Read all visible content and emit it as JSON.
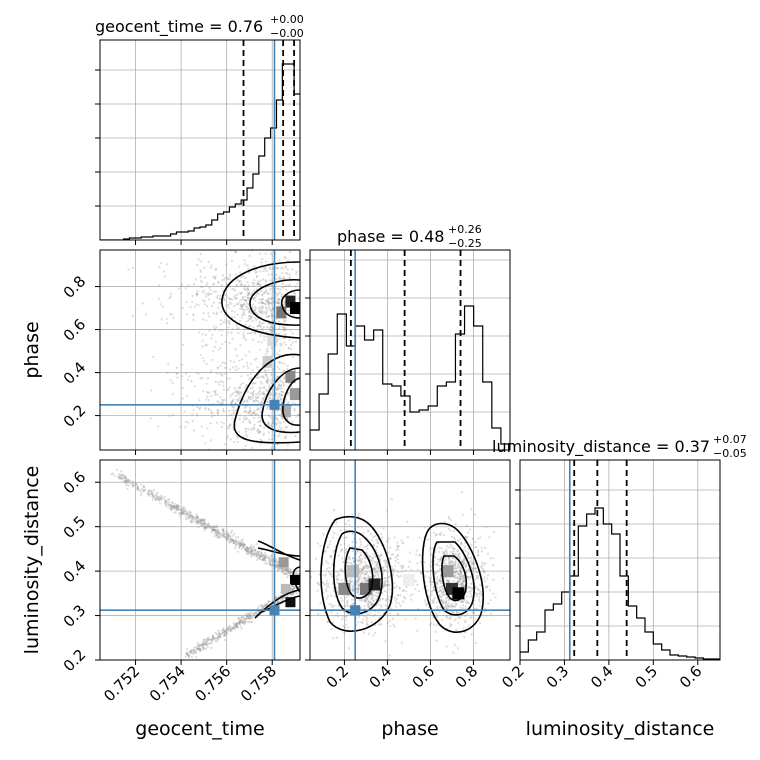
{
  "chart_data": {
    "type": "corner",
    "parameters": [
      "geocent_time",
      "phase",
      "luminosity_distance"
    ],
    "titles": [
      {
        "name": "geocent_time",
        "value": "0.76",
        "plus": "+0.00",
        "minus": "−0.00"
      },
      {
        "name": "phase",
        "value": "0.48",
        "plus": "+0.26",
        "minus": "−0.25"
      },
      {
        "name": "luminosity_distance",
        "value": "0.37",
        "plus": "+0.07",
        "minus": "−0.05"
      }
    ],
    "axis_labels": {
      "x": [
        "geocent_time",
        "phase",
        "luminosity_distance"
      ],
      "y": [
        "phase",
        "luminosity_distance"
      ]
    },
    "ranges": {
      "geocent_time": [
        0.75044,
        0.75922
      ],
      "phase": [
        0.04,
        0.97
      ],
      "luminosity_distance": [
        0.2,
        0.65
      ]
    },
    "ticks": {
      "geocent_time": [
        "0.752",
        "0.754",
        "0.756",
        "0.758"
      ],
      "phase_x": [
        "0.2",
        "0.4",
        "0.6",
        "0.8"
      ],
      "phase_y": [
        "0.2",
        "0.4",
        "0.6",
        "0.8"
      ],
      "luminosity_distance_x": [
        "0.2",
        "0.3",
        "0.4",
        "0.5",
        "0.6"
      ],
      "luminosity_distance_y": [
        "0.2",
        "0.3",
        "0.4",
        "0.5",
        "0.6"
      ]
    },
    "truths": {
      "geocent_time": 0.7581,
      "phase": 0.25,
      "luminosity_distance": 0.312
    },
    "quantiles": {
      "geocent_time": [
        0.75674,
        0.75848,
        0.75896
      ],
      "phase": [
        0.23,
        0.48,
        0.74
      ],
      "luminosity_distance": [
        0.322,
        0.374,
        0.44
      ]
    },
    "histograms": {
      "geocent_time": [
        0,
        0,
        0,
        0,
        0.005,
        0.01,
        0.01,
        0.015,
        0.015,
        0.02,
        0.02,
        0.02,
        0.03,
        0.04,
        0.04,
        0.045,
        0.06,
        0.065,
        0.075,
        0.1,
        0.13,
        0.14,
        0.165,
        0.18,
        0.2,
        0.26,
        0.33,
        0.42,
        0.51,
        0.56,
        0.7,
        0.88,
        0.88,
        0.73
      ],
      "phase": [
        0.1,
        0.28,
        0.48,
        0.68,
        0.52,
        0.62,
        0.55,
        0.6,
        0.33,
        0.32,
        0.27,
        0.19,
        0.2,
        0.22,
        0.32,
        0.34,
        0.58,
        0.72,
        0.62,
        0.34,
        0.11,
        0.03
      ],
      "luminosity_distance": [
        0.04,
        0.1,
        0.14,
        0.25,
        0.28,
        0.34,
        0.42,
        0.67,
        0.73,
        0.76,
        0.68,
        0.63,
        0.42,
        0.27,
        0.21,
        0.14,
        0.08,
        0.05,
        0.025,
        0.02,
        0.015,
        0.01,
        0.005,
        0.005
      ]
    },
    "grid": true,
    "colors": {
      "truth": "#4682b4",
      "contour": "#000000",
      "points": "#9a9a9a",
      "grid": "#b0b0b0"
    }
  }
}
